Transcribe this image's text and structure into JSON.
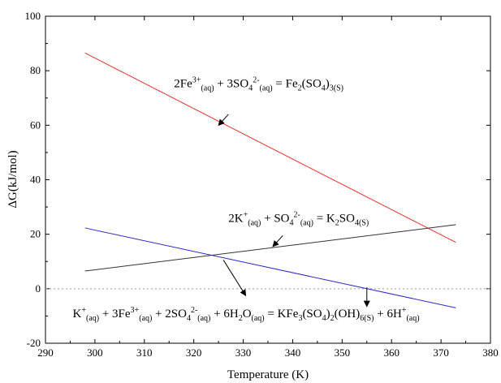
{
  "chart_data": {
    "type": "line",
    "title": "",
    "xlabel": "Temperature (K)",
    "ylabel": "ΔG(kJ/mol)",
    "xlim": [
      290,
      380
    ],
    "ylim": [
      -20,
      100
    ],
    "xticks": [
      290,
      300,
      310,
      320,
      330,
      340,
      350,
      360,
      370,
      380
    ],
    "yticks": [
      -20,
      0,
      20,
      40,
      60,
      80,
      100
    ],
    "xtick_labels": [
      "290",
      "300",
      "310",
      "320",
      "330",
      "340",
      "350",
      "360",
      "370",
      "380"
    ],
    "ytick_labels": [
      "-20",
      "0",
      "20",
      "40",
      "60",
      "80",
      "100"
    ],
    "grid": false,
    "reference_line": {
      "y": 0,
      "style": "dotted",
      "color": "#999999"
    },
    "series": [
      {
        "color": "#e8322b",
        "x": [
          298,
          373
        ],
        "y": [
          86.5,
          17.0
        ]
      },
      {
        "color": "#333333",
        "x": [
          298,
          373
        ],
        "y": [
          6.5,
          23.5
        ]
      },
      {
        "color": "#2b2bcc",
        "x": [
          298,
          373
        ],
        "y": [
          22.3,
          -7.0
        ]
      }
    ],
    "annotations": [
      {
        "series": 0,
        "parts": [
          {
            "t": "2Fe"
          },
          {
            "t": "3+",
            "s": "sup"
          },
          {
            "t": "(aq)",
            "s": "sub"
          },
          {
            "t": " + 3SO"
          },
          {
            "t": "4",
            "s": "sub"
          },
          {
            "t": "2-",
            "s": "sup"
          },
          {
            "t": "(aq)",
            "s": "sub"
          },
          {
            "t": " = Fe"
          },
          {
            "t": "2",
            "s": "sub"
          },
          {
            "t": "(SO"
          },
          {
            "t": "4",
            "s": "sub"
          },
          {
            "t": ")"
          },
          {
            "t": "3(S)",
            "s": "sub"
          }
        ],
        "text_at": [
          316,
          74
        ],
        "arrow_from": [
          327,
          64
        ],
        "arrow_to": [
          325,
          60
        ]
      },
      {
        "series": 1,
        "parts": [
          {
            "t": "2K"
          },
          {
            "t": "+",
            "s": "sup"
          },
          {
            "t": "(aq)",
            "s": "sub"
          },
          {
            "t": " + SO"
          },
          {
            "t": "4",
            "s": "sub"
          },
          {
            "t": "2-",
            "s": "sup"
          },
          {
            "t": "(aq)",
            "s": "sub"
          },
          {
            "t": " = K"
          },
          {
            "t": "2",
            "s": "sub"
          },
          {
            "t": "SO"
          },
          {
            "t": "4(S)",
            "s": "sub"
          }
        ],
        "text_at": [
          327,
          24.5
        ],
        "arrow_from": [
          338,
          19.5
        ],
        "arrow_to": [
          336,
          15.5
        ]
      },
      {
        "series": 2,
        "parts": [
          {
            "t": "K"
          },
          {
            "t": "+",
            "s": "sup"
          },
          {
            "t": "(aq)",
            "s": "sub"
          },
          {
            "t": " + 3Fe"
          },
          {
            "t": "3+",
            "s": "sup"
          },
          {
            "t": "(aq)",
            "s": "sub"
          },
          {
            "t": " + 2SO"
          },
          {
            "t": "4",
            "s": "sub"
          },
          {
            "t": "2-",
            "s": "sup"
          },
          {
            "t": "(aq)",
            "s": "sub"
          },
          {
            "t": " + 6H"
          },
          {
            "t": "2",
            "s": "sub"
          },
          {
            "t": "O"
          },
          {
            "t": "(aq)",
            "s": "sub"
          },
          {
            "t": " = KFe"
          },
          {
            "t": "3",
            "s": "sub"
          },
          {
            "t": "(SO"
          },
          {
            "t": "4",
            "s": "sub"
          },
          {
            "t": ")"
          },
          {
            "t": "2",
            "s": "sub"
          },
          {
            "t": "(OH)"
          },
          {
            "t": "6(S)",
            "s": "sub"
          },
          {
            "t": " + 6H"
          },
          {
            "t": "+",
            "s": "sup"
          },
          {
            "t": "(aq)",
            "s": "sub"
          }
        ],
        "text_at": [
          295.5,
          -10.5
        ],
        "arrows": [
          {
            "from": [
              326,
              10.5
            ],
            "to": [
              330.5,
              -2.5
            ]
          },
          {
            "from": [
              355,
              0.5
            ],
            "to": [
              355,
              -6.5
            ]
          }
        ]
      }
    ]
  }
}
